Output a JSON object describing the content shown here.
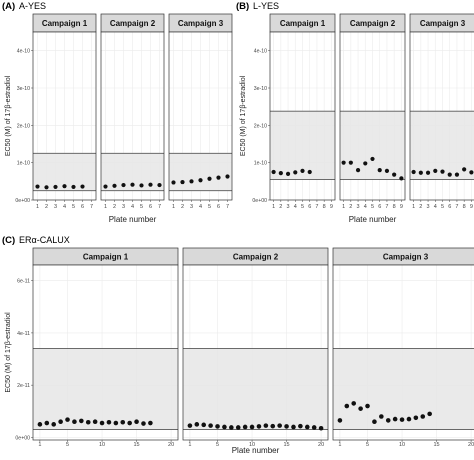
{
  "chart_data": [
    {
      "type": "scatter",
      "panel_label": "(A)",
      "title": "A-YES",
      "xlabel": "Plate number",
      "ylabel": "EC50 (M) of 17β-estradiol",
      "ylim": [
        0,
        4.5e-10
      ],
      "yticks": [
        0,
        1e-10,
        2e-10,
        3e-10,
        4e-10
      ],
      "ytick_labels": [
        "0e+00",
        "1e-10",
        "2e-10",
        "3e-10",
        "4e-10"
      ],
      "xlim": [
        0.5,
        7.5
      ],
      "xticks": [
        1,
        2,
        3,
        4,
        5,
        6,
        7
      ],
      "xtick_labels": [
        "1",
        "2",
        "3",
        "4",
        "5",
        "6",
        "7"
      ],
      "band": [
        2.5e-11,
        1.25e-10
      ],
      "grid": true,
      "facets": [
        {
          "name": "Campaign 1",
          "x": [
            1,
            2,
            3,
            4,
            5,
            6
          ],
          "y": [
            3.6e-11,
            3.4e-11,
            3.5e-11,
            3.7e-11,
            3.5e-11,
            3.6e-11
          ]
        },
        {
          "name": "Campaign 2",
          "x": [
            1,
            2,
            3,
            4,
            5,
            6,
            7
          ],
          "y": [
            3.6e-11,
            3.8e-11,
            4e-11,
            4.1e-11,
            3.9e-11,
            4.1e-11,
            4e-11
          ]
        },
        {
          "name": "Campaign 3",
          "x": [
            1,
            2,
            3,
            4,
            5,
            6,
            7
          ],
          "y": [
            4.7e-11,
            4.8e-11,
            5e-11,
            5.3e-11,
            5.7e-11,
            6e-11,
            6.3e-11
          ]
        }
      ]
    },
    {
      "type": "scatter",
      "panel_label": "(B)",
      "title": "L-YES",
      "xlabel": "Plate number",
      "ylabel": "EC50 (M) of 17β-estradiol",
      "ylim": [
        0,
        4.5e-10
      ],
      "yticks": [
        0,
        1e-10,
        2e-10,
        3e-10,
        4e-10
      ],
      "ytick_labels": [
        "0e+00",
        "1e-10",
        "2e-10",
        "3e-10",
        "4e-10"
      ],
      "xlim": [
        0.5,
        9.5
      ],
      "xticks": [
        1,
        2,
        3,
        4,
        5,
        6,
        7,
        8,
        9
      ],
      "xtick_labels": [
        "1",
        "2",
        "3",
        "4",
        "5",
        "6",
        "7",
        "8",
        "9"
      ],
      "band": [
        5.5e-11,
        2.38e-10
      ],
      "grid": true,
      "facets": [
        {
          "name": "Campaign 1",
          "x": [
            1,
            2,
            3,
            4,
            5,
            6
          ],
          "y": [
            7.5e-11,
            7.2e-11,
            7e-11,
            7.4e-11,
            7.8e-11,
            7.5e-11
          ]
        },
        {
          "name": "Campaign 2",
          "x": [
            1,
            2,
            3,
            4,
            5,
            6,
            7,
            8,
            9
          ],
          "y": [
            1e-10,
            1e-10,
            8e-11,
            9.8e-11,
            1.1e-10,
            8e-11,
            7.8e-11,
            6.8e-11,
            5.8e-11
          ]
        },
        {
          "name": "Campaign 3",
          "x": [
            1,
            2,
            3,
            4,
            5,
            6,
            7,
            8,
            9
          ],
          "y": [
            7.5e-11,
            7.3e-11,
            7.3e-11,
            7.8e-11,
            7.6e-11,
            6.8e-11,
            6.8e-11,
            8.2e-11,
            7.4e-11
          ]
        }
      ]
    },
    {
      "type": "scatter",
      "panel_label": "(C)",
      "title": "ERα-CALUX",
      "xlabel": "Plate number",
      "ylabel": "EC50 (M) of 17β-estradiol",
      "ylim": [
        -1e-12,
        6.6e-11
      ],
      "yticks": [
        0,
        2e-11,
        4e-11,
        6e-11
      ],
      "ytick_labels": [
        "0e+00",
        "2e-11",
        "4e-11",
        "6e-11"
      ],
      "xlim": [
        0,
        21
      ],
      "xticks": [
        1,
        5,
        10,
        15,
        20
      ],
      "xtick_labels": [
        "1",
        "5",
        "10",
        "15",
        "20"
      ],
      "band": [
        3e-12,
        3.4e-11
      ],
      "grid": true,
      "facets": [
        {
          "name": "Campaign 1",
          "x": [
            1,
            2,
            3,
            4,
            5,
            6,
            7,
            8,
            9,
            10,
            11,
            12,
            13,
            14,
            15,
            16,
            17
          ],
          "y": [
            5e-12,
            5.5e-12,
            5e-12,
            6e-12,
            6.8e-12,
            6e-12,
            6.3e-12,
            5.8e-12,
            6e-12,
            5.5e-12,
            5.8e-12,
            5.5e-12,
            5.8e-12,
            5.5e-12,
            6e-12,
            5.3e-12,
            5.5e-12
          ]
        },
        {
          "name": "Campaign 2",
          "x": [
            1,
            2,
            3,
            4,
            5,
            6,
            7,
            8,
            9,
            10,
            11,
            12,
            13,
            14,
            15,
            16,
            17,
            18,
            19,
            20
          ],
          "y": [
            4.5e-12,
            5e-12,
            4.8e-12,
            4.5e-12,
            4.2e-12,
            4e-12,
            3.8e-12,
            3.8e-12,
            4e-12,
            4e-12,
            4.2e-12,
            4.5e-12,
            4.3e-12,
            4.5e-12,
            4.2e-12,
            4e-12,
            4.3e-12,
            4e-12,
            3.8e-12,
            3.5e-12
          ]
        },
        {
          "name": "Campaign 3",
          "x": [
            1,
            2,
            3,
            4,
            5,
            6,
            7,
            8,
            9,
            10,
            11,
            12,
            13,
            14
          ],
          "y": [
            6.5e-12,
            1.2e-11,
            1.3e-11,
            1.1e-11,
            1.2e-11,
            6e-12,
            8e-12,
            6.5e-12,
            7e-12,
            6.8e-12,
            7e-12,
            7.5e-12,
            8e-12,
            9e-12
          ]
        }
      ]
    }
  ],
  "colors": {
    "band": "#e6e6e6",
    "band_line": "#555555",
    "strip": "#d9d9d9",
    "grid": "#ebebeb",
    "point": "#111111",
    "frame": "#333333"
  }
}
